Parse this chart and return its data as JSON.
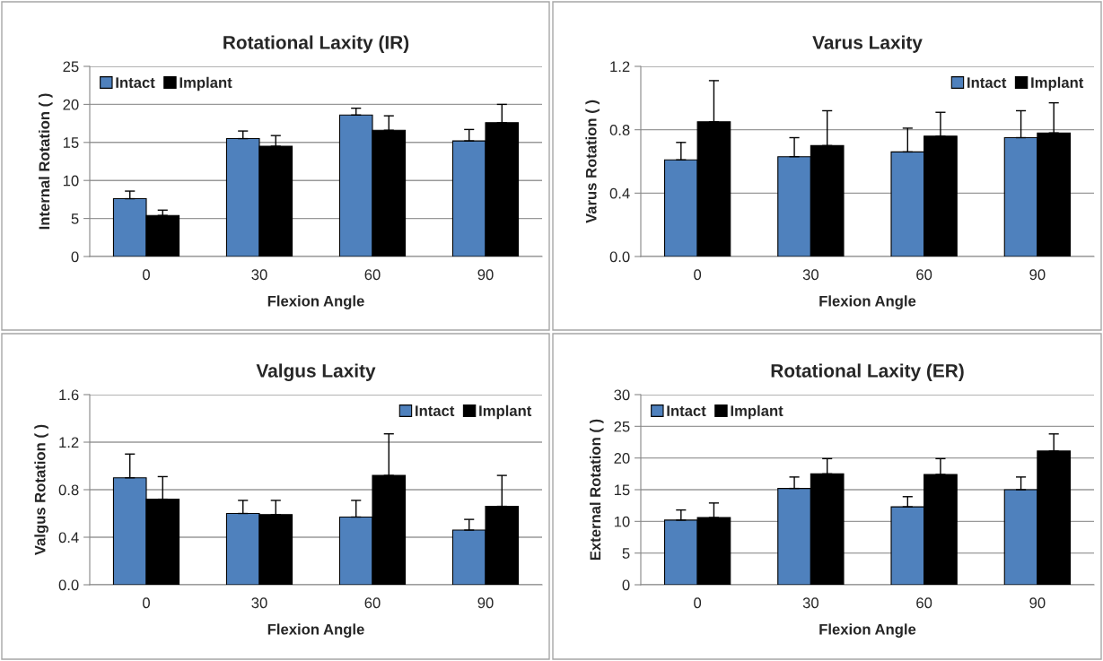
{
  "chart_data": [
    {
      "type": "bar",
      "title": "Rotational Laxity (IR)",
      "xlabel": "Flexion Angle",
      "ylabel": "Internal Rotation ( )",
      "categories": [
        "0",
        "30",
        "60",
        "90"
      ],
      "ylim": [
        0,
        25
      ],
      "yticks": [
        0,
        5,
        10,
        15,
        20,
        25
      ],
      "grid": "y",
      "legend": "top left",
      "series": [
        {
          "name": "Intact",
          "color": "#4f81bd",
          "values": [
            7.6,
            15.5,
            18.6,
            15.2
          ],
          "errors": [
            [
              7.6,
              8.6
            ],
            [
              15.5,
              16.5
            ],
            [
              18.6,
              19.5
            ],
            [
              15.2,
              16.7
            ]
          ]
        },
        {
          "name": "Implant",
          "color": "#000000",
          "values": [
            5.4,
            14.5,
            16.6,
            17.6
          ],
          "errors": [
            [
              5.4,
              6.1
            ],
            [
              14.5,
              15.9
            ],
            [
              16.6,
              18.5
            ],
            [
              17.6,
              20.0
            ]
          ]
        }
      ]
    },
    {
      "type": "bar",
      "title": "Varus Laxity",
      "xlabel": "Flexion Angle",
      "ylabel": "Varus Rotation ( )",
      "categories": [
        "0",
        "30",
        "60",
        "90"
      ],
      "ylim": [
        0,
        1.2
      ],
      "yticks": [
        {
          "value": 0,
          "label": "0.0"
        },
        0.4,
        0.8,
        1.2
      ],
      "grid": "y",
      "legend": "top right",
      "series": [
        {
          "name": "Intact",
          "color": "#4f81bd",
          "values": [
            0.61,
            0.63,
            0.66,
            0.75
          ],
          "errors": [
            [
              0.61,
              0.72
            ],
            [
              0.63,
              0.75
            ],
            [
              0.66,
              0.81
            ],
            [
              0.75,
              0.92
            ]
          ]
        },
        {
          "name": "Implant",
          "color": "#000000",
          "values": [
            0.85,
            0.7,
            0.76,
            0.78
          ],
          "errors": [
            [
              0.85,
              1.11
            ],
            [
              0.7,
              0.92
            ],
            [
              0.76,
              0.91
            ],
            [
              0.78,
              0.97
            ]
          ]
        }
      ]
    },
    {
      "type": "bar",
      "title": "Valgus Laxity",
      "xlabel": "Flexion Angle",
      "ylabel": "Valgus Rotation ( )",
      "categories": [
        "0",
        "30",
        "60",
        "90"
      ],
      "ylim": [
        0,
        1.6
      ],
      "yticks": [
        {
          "value": 0,
          "label": "0.0"
        },
        0.4,
        0.8,
        1.2,
        1.6
      ],
      "grid": "y",
      "legend": "top right",
      "series": [
        {
          "name": "Intact",
          "color": "#4f81bd",
          "values": [
            0.9,
            0.6,
            0.57,
            0.46
          ],
          "errors": [
            [
              0.9,
              1.1
            ],
            [
              0.6,
              0.71
            ],
            [
              0.57,
              0.71
            ],
            [
              0.46,
              0.55
            ]
          ]
        },
        {
          "name": "Implant",
          "color": "#000000",
          "values": [
            0.72,
            0.59,
            0.92,
            0.66
          ],
          "errors": [
            [
              0.72,
              0.91
            ],
            [
              0.59,
              0.71
            ],
            [
              0.92,
              1.27
            ],
            [
              0.66,
              0.92
            ]
          ]
        }
      ]
    },
    {
      "type": "bar",
      "title": "Rotational Laxity (ER)",
      "xlabel": "Flexion Angle",
      "ylabel": "External Rotation ( )",
      "categories": [
        "0",
        "30",
        "60",
        "90"
      ],
      "ylim": [
        0,
        30
      ],
      "yticks": [
        0,
        5,
        10,
        15,
        20,
        25,
        30
      ],
      "grid": "y",
      "legend": "top left",
      "series": [
        {
          "name": "Intact",
          "color": "#4f81bd",
          "values": [
            10.2,
            15.2,
            12.3,
            15.0
          ],
          "errors": [
            [
              10.2,
              11.8
            ],
            [
              15.2,
              17.0
            ],
            [
              12.3,
              13.9
            ],
            [
              15.0,
              17.0
            ]
          ]
        },
        {
          "name": "Implant",
          "color": "#000000",
          "values": [
            10.6,
            17.5,
            17.4,
            21.1
          ],
          "errors": [
            [
              10.6,
              12.9
            ],
            [
              17.5,
              19.9
            ],
            [
              17.4,
              19.9
            ],
            [
              21.1,
              23.8
            ]
          ]
        }
      ]
    }
  ]
}
